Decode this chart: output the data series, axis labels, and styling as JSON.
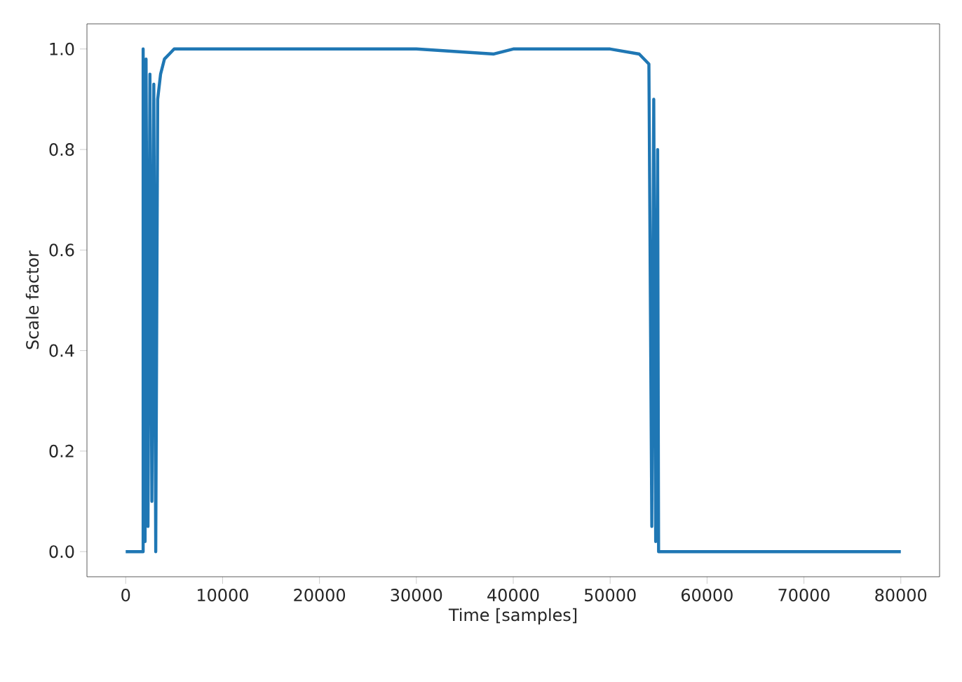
{
  "chart_data": {
    "type": "line",
    "xlabel": "Time [samples]",
    "ylabel": "Scale factor",
    "x": [
      0,
      1800,
      1800,
      2000,
      2100,
      2300,
      2500,
      2700,
      2900,
      3100,
      3300,
      3600,
      4000,
      4500,
      5000,
      6000,
      10000,
      20000,
      30000,
      38000,
      40000,
      50000,
      53000,
      54000,
      54300,
      54500,
      54700,
      54900,
      55000,
      55100,
      60000,
      80000
    ],
    "series": [
      {
        "color": "#1f77b4",
        "values": [
          0,
          0,
          1,
          0.02,
          0.98,
          0.05,
          0.95,
          0.1,
          0.93,
          0,
          0.9,
          0.95,
          0.98,
          0.99,
          1,
          1,
          1,
          1,
          1,
          0.99,
          1,
          1,
          0.99,
          0.97,
          0.05,
          0.9,
          0.02,
          0.8,
          0,
          0,
          0,
          0
        ]
      }
    ],
    "xlim": [
      -4000,
      84000
    ],
    "ylim": [
      -0.05,
      1.05
    ],
    "xticks": [
      0,
      10000,
      20000,
      30000,
      40000,
      50000,
      60000,
      70000,
      80000
    ],
    "yticks": [
      {
        "value": 0,
        "label": "0.0"
      },
      {
        "value": 0.2,
        "label": "0.2"
      },
      {
        "value": 0.4,
        "label": "0.4"
      },
      {
        "value": 0.6,
        "label": "0.6"
      },
      {
        "value": 0.8,
        "label": "0.8"
      },
      {
        "value": 1,
        "label": "1.0"
      }
    ],
    "grid": false
  }
}
